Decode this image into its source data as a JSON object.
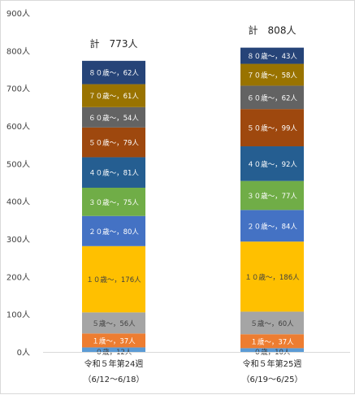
{
  "chart_data": {
    "type": "bar",
    "stacked": true,
    "title": "",
    "xlabel": "",
    "ylabel": "",
    "ylim": [
      0,
      900
    ],
    "yticks": [
      0,
      100,
      200,
      300,
      400,
      500,
      600,
      700,
      800,
      900
    ],
    "ytick_labels": [
      "0人",
      "100人",
      "200人",
      "300人",
      "400人",
      "500人",
      "600人",
      "700人",
      "800人",
      "900人"
    ],
    "grid": false,
    "legend": "none",
    "categories": [
      {
        "line1": "令和５年第24週",
        "line2": "（6/12～6/18）",
        "total_label": "計　773人",
        "total": 773
      },
      {
        "line1": "令和５年第25週",
        "line2": "（6/19～6/25）",
        "total_label": "計　808人",
        "total": 808
      }
    ],
    "series": [
      {
        "label_prefix": "０歳，",
        "color": "#5b9bd5",
        "text_color": "#404040",
        "values": [
          12,
          10
        ],
        "value_labels": [
          "12人",
          "10人"
        ]
      },
      {
        "label_prefix": "１歳～，",
        "color": "#ed7d31",
        "text_color": "#ffffff",
        "values": [
          37,
          37
        ],
        "value_labels": [
          "37人",
          "37人"
        ]
      },
      {
        "label_prefix": "５歳～，",
        "color": "#a5a5a5",
        "text_color": "#404040",
        "values": [
          56,
          60
        ],
        "value_labels": [
          "56人",
          "60人"
        ]
      },
      {
        "label_prefix": "１０歳～，",
        "color": "#ffc000",
        "text_color": "#404040",
        "values": [
          176,
          186
        ],
        "value_labels": [
          "176人",
          "186人"
        ]
      },
      {
        "label_prefix": "２０歳～，",
        "color": "#4472c4",
        "text_color": "#ffffff",
        "values": [
          80,
          84
        ],
        "value_labels": [
          "80人",
          "84人"
        ]
      },
      {
        "label_prefix": "３０歳～，",
        "color": "#70ad47",
        "text_color": "#ffffff",
        "values": [
          75,
          77
        ],
        "value_labels": [
          "75人",
          "77人"
        ]
      },
      {
        "label_prefix": "４０歳～，",
        "color": "#255e91",
        "text_color": "#ffffff",
        "values": [
          81,
          92
        ],
        "value_labels": [
          "81人",
          "92人"
        ]
      },
      {
        "label_prefix": "５０歳～，",
        "color": "#9e480e",
        "text_color": "#ffffff",
        "values": [
          79,
          99
        ],
        "value_labels": [
          "79人",
          "99人"
        ]
      },
      {
        "label_prefix": "６０歳～，",
        "color": "#636363",
        "text_color": "#ffffff",
        "values": [
          54,
          62
        ],
        "value_labels": [
          "54人",
          "62人"
        ]
      },
      {
        "label_prefix": "７０歳～，",
        "color": "#997300",
        "text_color": "#ffffff",
        "values": [
          61,
          58
        ],
        "value_labels": [
          "61人",
          "58人"
        ]
      },
      {
        "label_prefix": "８０歳～，",
        "color": "#264478",
        "text_color": "#ffffff",
        "values": [
          62,
          43
        ],
        "value_labels": [
          "62人",
          "43人"
        ]
      }
    ]
  }
}
